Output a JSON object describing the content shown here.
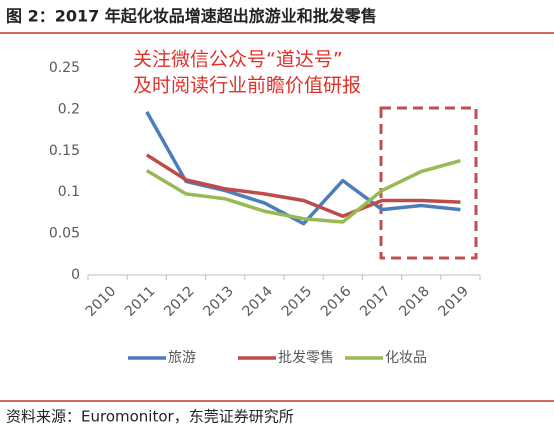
{
  "chart_data": {
    "type": "line",
    "title": "图 2：2017 年起化妆品增速超出旅游业和批发零售",
    "annotations": [
      "关注微信公众号“道达号”",
      "及时阅读行业前瞻价值研报"
    ],
    "source": "资料来源：Euromonitor，东莞证券研究所",
    "categories": [
      "2010",
      "2011",
      "2012",
      "2013",
      "2014",
      "2015",
      "2016",
      "2017",
      "2018",
      "2019"
    ],
    "series": [
      {
        "name": "旅游",
        "color": "#4a7ebb",
        "values": [
          null,
          0.197,
          0.113,
          0.102,
          0.087,
          0.062,
          0.114,
          0.079,
          0.084,
          0.079
        ]
      },
      {
        "name": "批发零售",
        "color": "#be4b48",
        "values": [
          null,
          0.145,
          0.115,
          0.104,
          0.098,
          0.09,
          0.071,
          0.09,
          0.09,
          0.088
        ]
      },
      {
        "name": "化妆品",
        "color": "#98b954",
        "values": [
          null,
          0.126,
          0.098,
          0.092,
          0.077,
          0.068,
          0.064,
          0.102,
          0.125,
          0.138
        ]
      }
    ],
    "ylim": [
      0,
      0.25
    ],
    "yticks": [
      0,
      0.05,
      0.1,
      0.15,
      0.2,
      0.25
    ],
    "grid": false
  }
}
